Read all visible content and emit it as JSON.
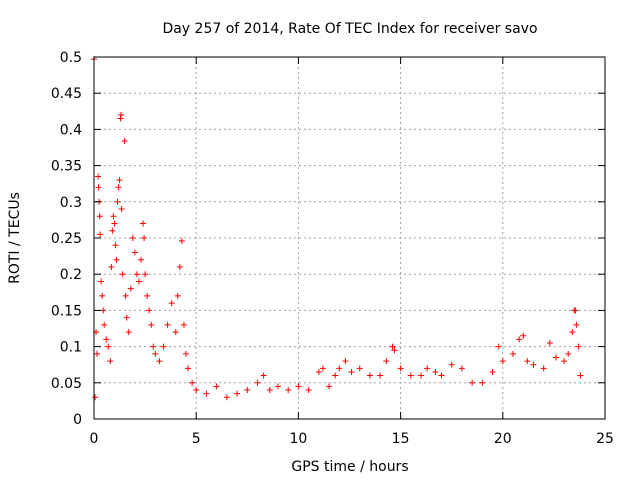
{
  "chart_data": {
    "type": "scatter",
    "title": "Day 257 of 2014, Rate Of TEC Index for receiver savo",
    "xlabel": "GPS time / hours",
    "ylabel": "ROTI / TECUs",
    "xlim": [
      0,
      25
    ],
    "ylim": [
      0,
      0.5
    ],
    "xticks": [
      0,
      5,
      10,
      15,
      20,
      25
    ],
    "yticks": [
      0,
      0.05,
      0.1,
      0.15,
      0.2,
      0.25,
      0.3,
      0.35,
      0.4,
      0.45,
      0.5
    ],
    "xtick_labels": [
      "0",
      "5",
      "10",
      "15",
      "20",
      "25"
    ],
    "ytick_labels": [
      "0",
      "0.05",
      "0.1",
      "0.15",
      "0.2",
      "0.25",
      "0.3",
      "0.35",
      "0.4",
      "0.45",
      "0.5"
    ],
    "grid": true,
    "marker": "+",
    "color": "#ff0000",
    "series": [
      {
        "name": "ROTI",
        "points": [
          [
            0.0,
            0.497
          ],
          [
            0.05,
            0.03
          ],
          [
            0.1,
            0.12
          ],
          [
            0.15,
            0.09
          ],
          [
            0.2,
            0.335
          ],
          [
            0.22,
            0.32
          ],
          [
            0.25,
            0.3
          ],
          [
            0.28,
            0.28
          ],
          [
            0.3,
            0.255
          ],
          [
            0.35,
            0.19
          ],
          [
            0.4,
            0.17
          ],
          [
            0.45,
            0.15
          ],
          [
            0.5,
            0.13
          ],
          [
            0.6,
            0.11
          ],
          [
            0.7,
            0.1
          ],
          [
            0.8,
            0.08
          ],
          [
            0.85,
            0.21
          ],
          [
            0.9,
            0.26
          ],
          [
            0.95,
            0.28
          ],
          [
            1.0,
            0.27
          ],
          [
            1.05,
            0.24
          ],
          [
            1.1,
            0.22
          ],
          [
            1.15,
            0.3
          ],
          [
            1.2,
            0.32
          ],
          [
            1.25,
            0.33
          ],
          [
            1.3,
            0.415
          ],
          [
            1.32,
            0.42
          ],
          [
            1.35,
            0.29
          ],
          [
            1.4,
            0.2
          ],
          [
            1.5,
            0.384
          ],
          [
            1.55,
            0.17
          ],
          [
            1.6,
            0.14
          ],
          [
            1.7,
            0.12
          ],
          [
            1.8,
            0.18
          ],
          [
            1.9,
            0.25
          ],
          [
            2.0,
            0.23
          ],
          [
            2.1,
            0.2
          ],
          [
            2.2,
            0.19
          ],
          [
            2.3,
            0.22
          ],
          [
            2.4,
            0.27
          ],
          [
            2.45,
            0.25
          ],
          [
            2.5,
            0.2
          ],
          [
            2.6,
            0.17
          ],
          [
            2.7,
            0.15
          ],
          [
            2.8,
            0.13
          ],
          [
            2.9,
            0.1
          ],
          [
            3.0,
            0.09
          ],
          [
            3.2,
            0.08
          ],
          [
            3.4,
            0.1
          ],
          [
            3.6,
            0.13
          ],
          [
            3.8,
            0.16
          ],
          [
            4.0,
            0.12
          ],
          [
            4.1,
            0.17
          ],
          [
            4.2,
            0.21
          ],
          [
            4.3,
            0.246
          ],
          [
            4.4,
            0.13
          ],
          [
            4.5,
            0.09
          ],
          [
            4.6,
            0.07
          ],
          [
            4.8,
            0.05
          ],
          [
            5.0,
            0.04
          ],
          [
            5.5,
            0.035
          ],
          [
            6.0,
            0.045
          ],
          [
            6.5,
            0.03
          ],
          [
            7.0,
            0.035
          ],
          [
            7.5,
            0.04
          ],
          [
            8.0,
            0.05
          ],
          [
            8.3,
            0.06
          ],
          [
            8.6,
            0.04
          ],
          [
            9.0,
            0.045
          ],
          [
            9.5,
            0.04
          ],
          [
            10.0,
            0.045
          ],
          [
            10.5,
            0.04
          ],
          [
            11.0,
            0.065
          ],
          [
            11.2,
            0.07
          ],
          [
            11.5,
            0.045
          ],
          [
            11.8,
            0.06
          ],
          [
            12.0,
            0.07
          ],
          [
            12.3,
            0.08
          ],
          [
            12.6,
            0.065
          ],
          [
            13.0,
            0.07
          ],
          [
            13.5,
            0.06
          ],
          [
            14.0,
            0.06
          ],
          [
            14.3,
            0.08
          ],
          [
            14.6,
            0.1
          ],
          [
            14.7,
            0.095
          ],
          [
            15.0,
            0.07
          ],
          [
            15.5,
            0.06
          ],
          [
            16.0,
            0.06
          ],
          [
            16.3,
            0.07
          ],
          [
            16.7,
            0.065
          ],
          [
            17.0,
            0.06
          ],
          [
            17.5,
            0.075
          ],
          [
            18.0,
            0.07
          ],
          [
            18.5,
            0.05
          ],
          [
            19.0,
            0.05
          ],
          [
            19.5,
            0.065
          ],
          [
            19.8,
            0.1
          ],
          [
            20.0,
            0.08
          ],
          [
            20.5,
            0.09
          ],
          [
            20.8,
            0.11
          ],
          [
            21.0,
            0.115
          ],
          [
            21.2,
            0.08
          ],
          [
            21.5,
            0.075
          ],
          [
            22.0,
            0.07
          ],
          [
            22.3,
            0.105
          ],
          [
            22.6,
            0.085
          ],
          [
            23.0,
            0.08
          ],
          [
            23.2,
            0.09
          ],
          [
            23.4,
            0.12
          ],
          [
            23.5,
            0.15
          ],
          [
            23.55,
            0.15
          ],
          [
            23.6,
            0.13
          ],
          [
            23.7,
            0.1
          ],
          [
            23.8,
            0.06
          ]
        ]
      }
    ]
  }
}
